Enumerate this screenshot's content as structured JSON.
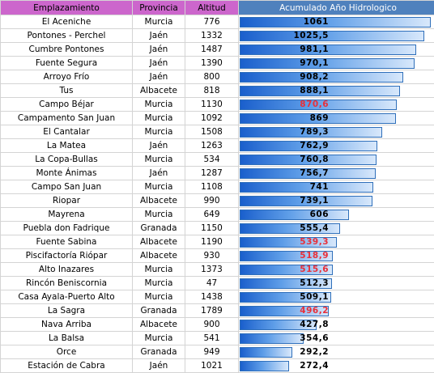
{
  "headers": {
    "name": "Emplazamiento",
    "province": "Provincia",
    "altitude": "Altitud",
    "accumulated": "Acumulado Año Hidrologico"
  },
  "colors": {
    "header_pink": "#cc66cc",
    "header_blue": "#4f81bd",
    "bar_blue": "#1a5fcc",
    "value_red": "#e8303a"
  },
  "bar_scale_max": 1061,
  "rows": [
    {
      "name": "El Aceniche",
      "province": "Murcia",
      "altitude": "776",
      "value": "1061",
      "num": 1061,
      "red": false
    },
    {
      "name": "Pontones - Perchel",
      "province": "Jaén",
      "altitude": "1332",
      "value": "1025,5",
      "num": 1025.5,
      "red": false
    },
    {
      "name": "Cumbre Pontones",
      "province": "Jaén",
      "altitude": "1487",
      "value": "981,1",
      "num": 981.1,
      "red": false
    },
    {
      "name": "Fuente Segura",
      "province": "Jaén",
      "altitude": "1390",
      "value": "970,1",
      "num": 970.1,
      "red": false
    },
    {
      "name": "Arroyo Frío",
      "province": "Jaén",
      "altitude": "800",
      "value": "908,2",
      "num": 908.2,
      "red": false
    },
    {
      "name": "Tus",
      "province": "Albacete",
      "altitude": "818",
      "value": "888,1",
      "num": 888.1,
      "red": false
    },
    {
      "name": "Campo Béjar",
      "province": "Murcia",
      "altitude": "1130",
      "value": "870,6",
      "num": 870.6,
      "red": true
    },
    {
      "name": "Campamento San Juan",
      "province": "Murcia",
      "altitude": "1092",
      "value": "869",
      "num": 869,
      "red": false
    },
    {
      "name": "El Cantalar",
      "province": "Murcia",
      "altitude": "1508",
      "value": "789,3",
      "num": 789.3,
      "red": false
    },
    {
      "name": "La Matea",
      "province": "Jaén",
      "altitude": "1263",
      "value": "762,9",
      "num": 762.9,
      "red": false
    },
    {
      "name": "La Copa-Bullas",
      "province": "Murcia",
      "altitude": "534",
      "value": "760,8",
      "num": 760.8,
      "red": false
    },
    {
      "name": "Monte Ánimas",
      "province": "Jaén",
      "altitude": "1287",
      "value": "756,7",
      "num": 756.7,
      "red": false
    },
    {
      "name": "Campo San Juan",
      "province": "Murcia",
      "altitude": "1108",
      "value": "741",
      "num": 741,
      "red": false
    },
    {
      "name": "Riopar",
      "province": "Albacete",
      "altitude": "990",
      "value": "739,1",
      "num": 739.1,
      "red": false
    },
    {
      "name": "Mayrena",
      "province": "Murcia",
      "altitude": "649",
      "value": "606",
      "num": 606,
      "red": false
    },
    {
      "name": "Puebla don Fadrique",
      "province": "Granada",
      "altitude": "1150",
      "value": "555,4",
      "num": 555.4,
      "red": false
    },
    {
      "name": "Fuente Sabina",
      "province": "Albacete",
      "altitude": "1190",
      "value": "539,3",
      "num": 539.3,
      "red": true
    },
    {
      "name": "Piscifactoría Riópar",
      "province": "Albacete",
      "altitude": "930",
      "value": "518,9",
      "num": 518.9,
      "red": true
    },
    {
      "name": "Alto Inazares",
      "province": "Murcia",
      "altitude": "1373",
      "value": "515,6",
      "num": 515.6,
      "red": true
    },
    {
      "name": "Rincón Beniscornia",
      "province": "Murcia",
      "altitude": "47",
      "value": "512,3",
      "num": 512.3,
      "red": false
    },
    {
      "name": "Casa Ayala-Puerto Alto",
      "province": "Murcia",
      "altitude": "1438",
      "value": "509,1",
      "num": 509.1,
      "red": false
    },
    {
      "name": "La Sagra",
      "province": "Granada",
      "altitude": "1789",
      "value": "496,2",
      "num": 496.2,
      "red": true
    },
    {
      "name": "Nava Arriba",
      "province": "Albacete",
      "altitude": "900",
      "value": "427,8",
      "num": 427.8,
      "red": false
    },
    {
      "name": "La Balsa",
      "province": "Murcia",
      "altitude": "541",
      "value": "354,6",
      "num": 354.6,
      "red": false
    },
    {
      "name": "Orce",
      "province": "Granada",
      "altitude": "949",
      "value": "292,2",
      "num": 292.2,
      "red": false
    },
    {
      "name": "Estación de Cabra",
      "province": "Jaén",
      "altitude": "1021",
      "value": "272,4",
      "num": 272.4,
      "red": false
    }
  ]
}
